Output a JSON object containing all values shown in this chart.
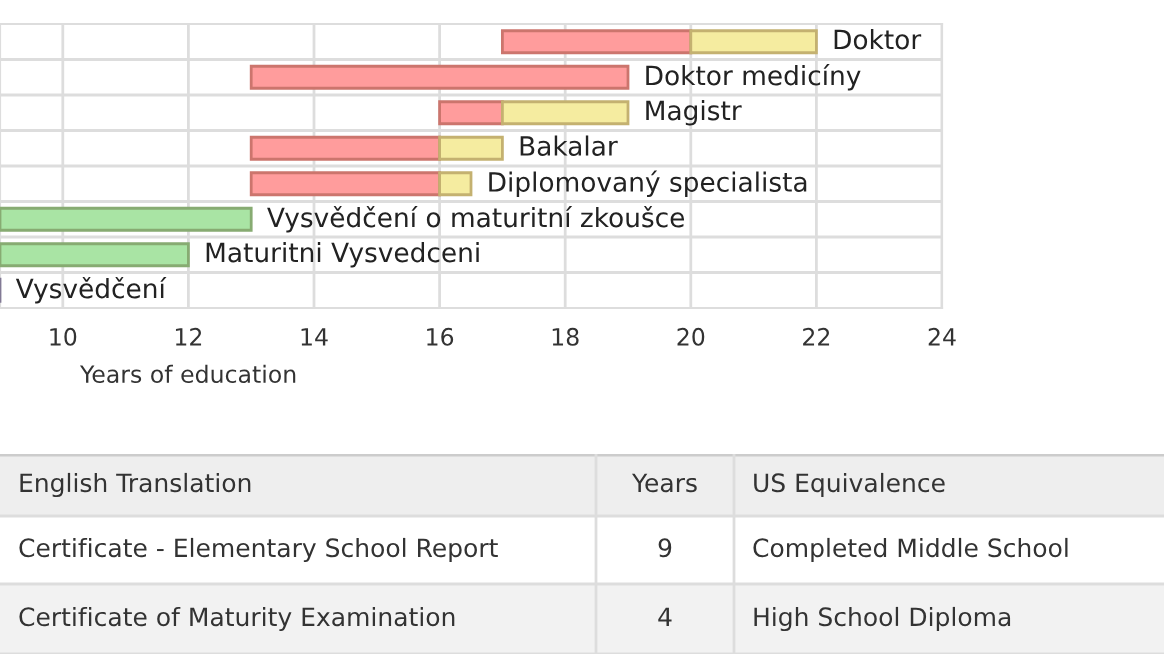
{
  "chart_data": [
    {
      "type": "bar",
      "orientation": "horizontal",
      "xlabel": "Years of education",
      "categories": [
        "Doktor",
        "Doktor medicíny",
        "Magistr",
        "Bakalar",
        "Diplomovaný specialista",
        "Vysvědčení o maturitní zkoušce",
        "Maturitni Vysvedceni",
        "Vysvědčení"
      ],
      "series": [
        {
          "color": "#ff9c9c",
          "base": [
            17,
            13,
            16,
            13,
            13,
            null,
            null,
            null
          ],
          "values": [
            3,
            6,
            1,
            3,
            3,
            null,
            null,
            null
          ]
        },
        {
          "color": "#f5eca0",
          "base": [
            20,
            null,
            17,
            16,
            16,
            null,
            null,
            null
          ],
          "values": [
            2,
            null,
            2,
            1,
            0.5,
            null,
            null,
            null
          ]
        },
        {
          "color": "#a9e4a4",
          "base": [
            null,
            null,
            null,
            null,
            null,
            9,
            9,
            null
          ],
          "values": [
            null,
            null,
            null,
            null,
            null,
            4,
            3,
            null
          ]
        },
        {
          "color": "#a3a3d6",
          "base": [
            null,
            null,
            null,
            null,
            null,
            null,
            null,
            0
          ],
          "values": [
            null,
            null,
            null,
            null,
            null,
            null,
            null,
            9
          ]
        }
      ],
      "xlim": [
        9,
        24
      ],
      "xticks": [
        10,
        12,
        14,
        16,
        18,
        20,
        22,
        24
      ],
      "grid": true
    },
    {
      "type": "other",
      "annotations": [
        "English Translation",
        "Years",
        "US Equivalence",
        "Certificate - Elementary School Report",
        "9",
        "Completed Middle School",
        "Certificate of Maturity Examination",
        "4",
        "High School Diploma"
      ]
    }
  ]
}
